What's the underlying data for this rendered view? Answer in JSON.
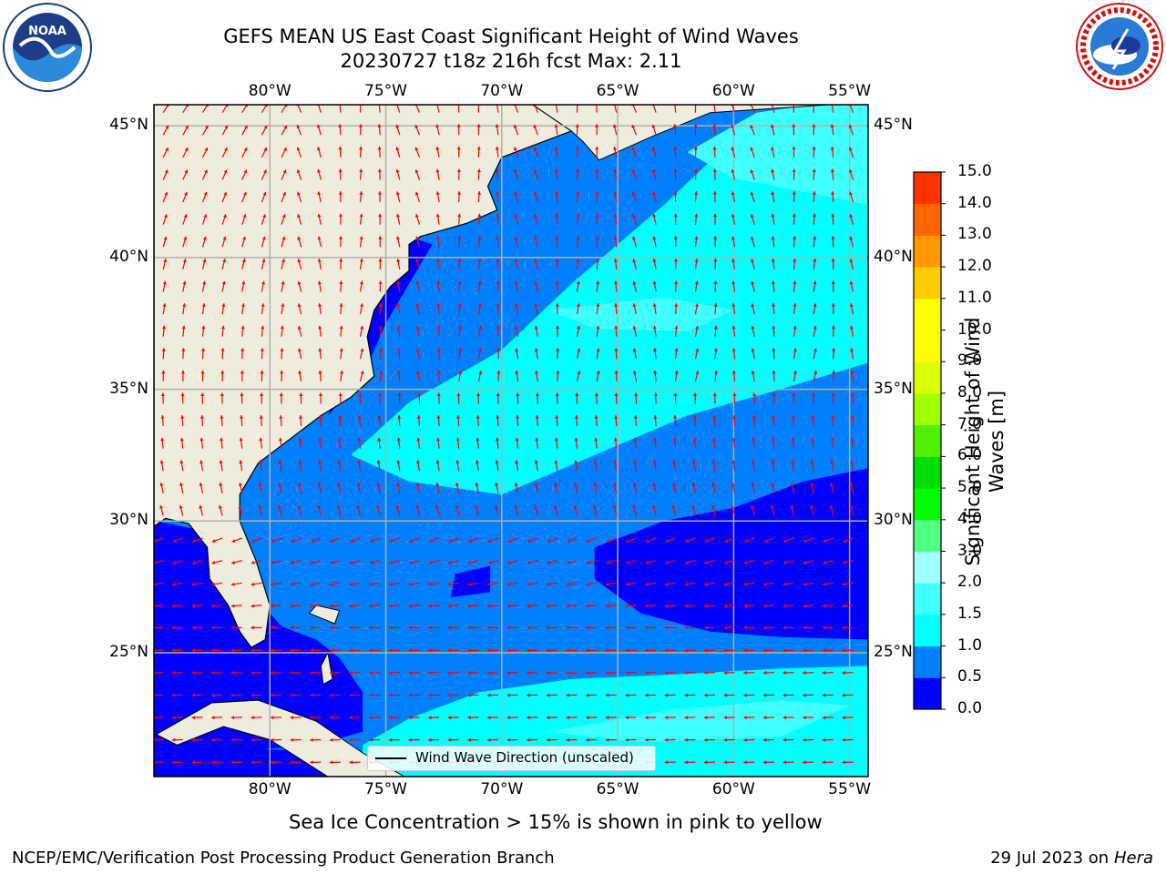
{
  "header": {
    "title_line1": "GEFS MEAN US East Coast Significant Height of Wind Waves",
    "title_line2": "20230727 t18z 216h fcst   Max: 2.11"
  },
  "logos": {
    "left": {
      "text": "NOAA",
      "ring_text_top": "NATIONAL OCEANIC AND ATMOSPHERIC ADMINISTRATION",
      "ring_text_bottom": "U.S. DEPARTMENT OF COMMERCE"
    },
    "right": {
      "ring_text": "NATIONAL WEATHER SERVICE"
    }
  },
  "map": {
    "lon_ticks": [
      "80°W",
      "75°W",
      "70°W",
      "65°W",
      "60°W",
      "55°W"
    ],
    "lat_ticks": [
      "45°N",
      "40°N",
      "35°N",
      "30°N",
      "25°N"
    ],
    "lon_values": [
      -80,
      -75,
      -70,
      -65,
      -60,
      -55
    ],
    "lat_values": [
      45,
      40,
      35,
      30,
      25
    ],
    "extent": {
      "lon": [
        -85,
        -54.2
      ],
      "lat": [
        20.3,
        45.8
      ]
    },
    "legend_label": "Wind Wave Direction (unscaled)",
    "colors": {
      "land": "#eeecdc",
      "grid": "#b0b0b0",
      "arrow": "#ff0000",
      "coast": "#000000"
    }
  },
  "colorbar": {
    "label": "Significant Height of Wind Waves [m]",
    "label_line1": "Significant Height of Wind",
    "label_line2": "Waves [m]",
    "ticks": [
      "15.0",
      "14.0",
      "13.0",
      "12.0",
      "11.0",
      "10.0",
      "9.0",
      "8.0",
      "7.0",
      "6.0",
      "5.0",
      "4.0",
      "3.0",
      "2.0",
      "1.5",
      "1.0",
      "0.5",
      "0.0"
    ],
    "levels": [
      0.0,
      0.5,
      1.0,
      1.5,
      2.0,
      3.0,
      4.0,
      5.0,
      6.0,
      7.0,
      8.0,
      9.0,
      10.0,
      11.0,
      12.0,
      13.0,
      14.0,
      15.0
    ],
    "colors": [
      "#0000ff",
      "#0080ff",
      "#00ffff",
      "#40ffff",
      "#a0ffff",
      "#50ff80",
      "#00ff00",
      "#00dd00",
      "#50f000",
      "#a0ff00",
      "#dcff00",
      "#ffff00",
      "#ffff00",
      "#ffcc00",
      "#ff9900",
      "#ff6600",
      "#ff3300",
      "#ff0000"
    ]
  },
  "footer": {
    "note": "Sea Ice Concentration > 15% is shown in pink to yellow",
    "branch": "NCEP/EMC/Verification Post Processing Product Generation Branch",
    "date": "29 Jul 2023 on",
    "machine": "Hera"
  }
}
